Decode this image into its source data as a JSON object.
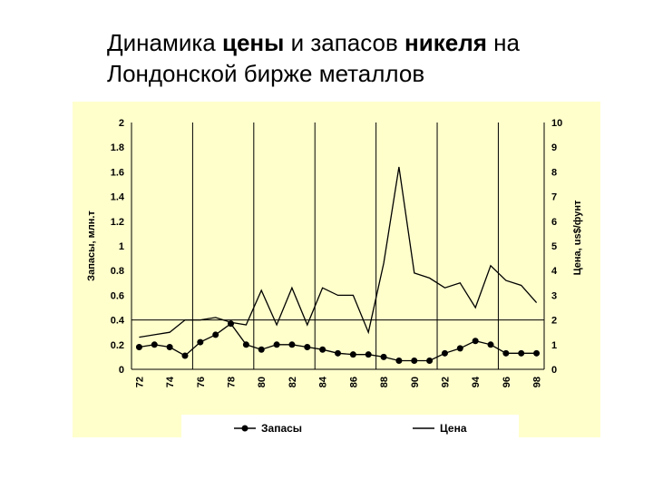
{
  "slide": {
    "title_parts": [
      {
        "text": "Динамика ",
        "bold": false
      },
      {
        "text": "цены",
        "bold": true
      },
      {
        "text": " и запасов ",
        "bold": false
      },
      {
        "text": "никеля",
        "bold": true
      },
      {
        "text": " на",
        "bold": false
      },
      {
        "text": "\nЛондонской бирже металлов",
        "bold": false
      }
    ]
  },
  "chart_data": {
    "type": "line",
    "chart_background": "#FFFFCC",
    "legend_background": "#FFFFFF",
    "grid": "vertical",
    "legend_position": "bottom",
    "categories": [
      "72",
      "73",
      "74",
      "75",
      "76",
      "77",
      "78",
      "79",
      "80",
      "81",
      "82",
      "83",
      "84",
      "85",
      "86",
      "87",
      "88",
      "89",
      "90",
      "91",
      "92",
      "93",
      "94",
      "95",
      "96",
      "97",
      "98"
    ],
    "x_tick_labels": [
      "72",
      "74",
      "76",
      "78",
      "80",
      "82",
      "84",
      "86",
      "88",
      "90",
      "92",
      "94",
      "96",
      "98"
    ],
    "left_axis": {
      "label": "Запасы, млн.т",
      "ylim": [
        0,
        2
      ],
      "ticks": [
        "0",
        "0.2",
        "0.4",
        "0.6",
        "0.8",
        "1",
        "1.2",
        "1.4",
        "1.6",
        "1.8",
        "2"
      ]
    },
    "right_axis": {
      "label": "Цена, us$/фунт",
      "ylim": [
        0,
        10
      ],
      "ticks": [
        "0",
        "1",
        "2",
        "3",
        "4",
        "5",
        "6",
        "7",
        "8",
        "9",
        "10"
      ]
    },
    "reference_line_left_value": 0.4,
    "series": [
      {
        "name": "Запасы",
        "axis": "left",
        "marker": "circle",
        "color": "#000000",
        "values": [
          0.18,
          0.2,
          0.18,
          0.11,
          0.22,
          0.28,
          0.37,
          0.2,
          0.16,
          0.2,
          0.2,
          0.18,
          0.16,
          0.13,
          0.12,
          0.12,
          0.1,
          0.07,
          0.07,
          0.07,
          0.13,
          0.17,
          0.23,
          0.2,
          0.13,
          0.13,
          0.13
        ]
      },
      {
        "name": "Цена",
        "axis": "right",
        "marker": "none",
        "color": "#000000",
        "values": [
          1.3,
          1.4,
          1.5,
          2.0,
          2.0,
          2.1,
          1.9,
          1.8,
          3.2,
          1.8,
          3.3,
          1.8,
          3.3,
          3.0,
          3.0,
          1.5,
          4.3,
          8.2,
          3.9,
          3.7,
          3.3,
          3.5,
          2.5,
          4.2,
          3.6,
          3.4,
          2.7
        ]
      }
    ]
  }
}
